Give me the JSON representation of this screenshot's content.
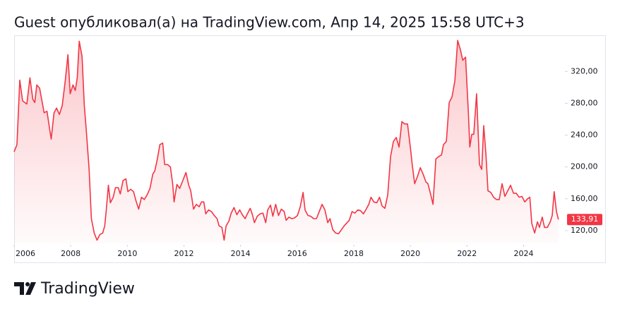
{
  "chart_data": {
    "type": "area",
    "title": "Guest опубликовал(а) на TradingView.com, Апр 14, 2025 15:58 UTC+3",
    "x": [
      2006.0,
      2006.1,
      2006.2,
      2006.3,
      2006.45,
      2006.56,
      2006.66,
      2006.73,
      2006.8,
      2006.9,
      2007.06,
      2007.16,
      2007.31,
      2007.41,
      2007.5,
      2007.6,
      2007.7,
      2007.8,
      2007.9,
      2007.98,
      2008.08,
      2008.16,
      2008.23,
      2008.3,
      2008.4,
      2008.48,
      2008.55,
      2008.65,
      2008.73,
      2008.83,
      2008.93,
      2009.03,
      2009.13,
      2009.2,
      2009.25,
      2009.33,
      2009.4,
      2009.5,
      2009.58,
      2009.68,
      2009.75,
      2009.85,
      2009.95,
      2010.02,
      2010.12,
      2010.22,
      2010.3,
      2010.4,
      2010.5,
      2010.6,
      2010.7,
      2010.8,
      2010.9,
      2010.97,
      2011.05,
      2011.15,
      2011.25,
      2011.32,
      2011.42,
      2011.52,
      2011.6,
      2011.65,
      2011.75,
      2011.85,
      2011.95,
      2012.07,
      2012.17,
      2012.24,
      2012.34,
      2012.44,
      2012.54,
      2012.62,
      2012.7,
      2012.77,
      2012.87,
      2012.97,
      2013.07,
      2013.17,
      2013.24,
      2013.34,
      2013.42,
      2013.49,
      2013.59,
      2013.67,
      2013.77,
      2013.87,
      2013.97,
      2014.06,
      2014.16,
      2014.24,
      2014.34,
      2014.41,
      2014.49,
      2014.59,
      2014.69,
      2014.79,
      2014.89,
      2014.96,
      2015.06,
      2015.14,
      2015.24,
      2015.34,
      2015.44,
      2015.54,
      2015.61,
      2015.71,
      2015.81,
      2015.91,
      2016.01,
      2016.11,
      2016.21,
      2016.28,
      2016.38,
      2016.48,
      2016.58,
      2016.68,
      2016.78,
      2016.88,
      2016.98,
      2017.08,
      2017.16,
      2017.26,
      2017.36,
      2017.46,
      2017.56,
      2017.66,
      2017.76,
      2017.84,
      2017.94,
      2018.04,
      2018.14,
      2018.24,
      2018.34,
      2018.44,
      2018.53,
      2018.61,
      2018.71,
      2018.81,
      2018.91,
      2019.0,
      2019.1,
      2019.2,
      2019.3,
      2019.4,
      2019.5,
      2019.6,
      2019.7,
      2019.8,
      2019.9,
      2020.0,
      2020.07,
      2020.15,
      2020.25,
      2020.35,
      2020.45,
      2020.55,
      2020.62,
      2020.72,
      2020.8,
      2020.9,
      2021.0,
      2021.1,
      2021.17,
      2021.27,
      2021.37,
      2021.47,
      2021.57,
      2021.67,
      2021.77,
      2021.85,
      2021.95,
      2022.05,
      2022.1,
      2022.17,
      2022.24,
      2022.34,
      2022.44,
      2022.52,
      2022.59,
      2022.67,
      2022.74,
      2022.84,
      2022.94,
      2023.04,
      2023.14,
      2023.24,
      2023.34,
      2023.44,
      2023.54,
      2023.64,
      2023.74,
      2023.84,
      2023.94,
      2024.04,
      2024.14,
      2024.22,
      2024.29,
      2024.39,
      2024.49,
      2024.56,
      2024.66,
      2024.74,
      2024.84,
      2024.94,
      2025.01,
      2025.08,
      2025.16,
      2025.23
    ],
    "series": [
      {
        "color": "#f23645",
        "values": [
          219,
          228,
          309,
          283,
          279,
          312,
          285,
          281,
          303,
          299,
          268,
          270,
          235,
          268,
          274,
          266,
          277,
          306,
          341,
          292,
          303,
          296,
          312,
          358,
          339,
          277,
          246,
          197,
          135,
          117,
          108,
          115,
          117,
          126,
          144,
          177,
          155,
          162,
          174,
          174,
          166,
          183,
          185,
          169,
          172,
          169,
          158,
          147,
          162,
          159,
          165,
          173,
          191,
          195,
          208,
          228,
          230,
          203,
          203,
          200,
          179,
          156,
          178,
          173,
          182,
          193,
          177,
          170,
          147,
          153,
          150,
          156,
          156,
          141,
          146,
          144,
          139,
          135,
          126,
          124,
          108,
          126,
          132,
          142,
          149,
          140,
          146,
          140,
          135,
          141,
          148,
          141,
          130,
          138,
          141,
          142,
          130,
          146,
          152,
          138,
          153,
          139,
          147,
          144,
          133,
          137,
          135,
          136,
          139,
          150,
          168,
          146,
          139,
          138,
          135,
          135,
          144,
          153,
          146,
          130,
          135,
          121,
          117,
          116,
          121,
          126,
          130,
          133,
          144,
          142,
          146,
          145,
          141,
          147,
          153,
          162,
          156,
          155,
          162,
          151,
          148,
          165,
          213,
          232,
          237,
          225,
          257,
          254,
          254,
          224,
          201,
          179,
          188,
          199,
          191,
          181,
          179,
          165,
          153,
          210,
          213,
          215,
          228,
          232,
          281,
          288,
          308,
          359,
          347,
          334,
          338,
          268,
          225,
          241,
          241,
          292,
          203,
          197,
          252,
          215,
          170,
          168,
          162,
          159,
          159,
          179,
          163,
          170,
          177,
          167,
          167,
          162,
          163,
          156,
          160,
          162,
          129,
          117,
          131,
          124,
          137,
          124,
          124,
          131,
          139,
          169,
          144,
          133.91
        ]
      }
    ],
    "last_value_label": "133,91",
    "xlim": [
      2006.0,
      2025.46
    ],
    "xticks": [
      2006,
      2008,
      2010,
      2012,
      2014,
      2016,
      2018,
      2020,
      2022,
      2024
    ],
    "ylim": [
      104,
      361
    ],
    "yticks": [
      {
        "value": 120,
        "label": "120,00"
      },
      {
        "value": 160,
        "label": "160,00"
      },
      {
        "value": 200,
        "label": "200,00"
      },
      {
        "value": 240,
        "label": "240,00"
      },
      {
        "value": 280,
        "label": "280,00"
      },
      {
        "value": 320,
        "label": "320,00"
      }
    ]
  },
  "brand": "TradingView"
}
